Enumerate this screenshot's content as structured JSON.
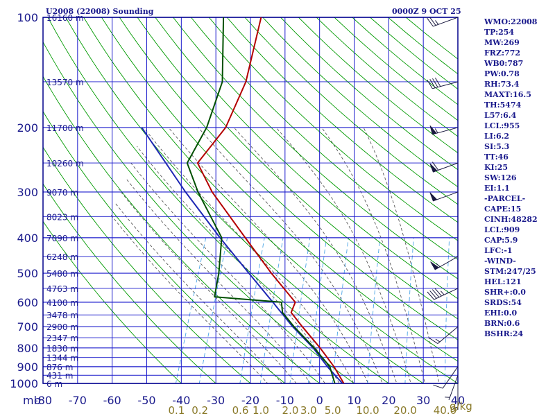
{
  "title_left": "U2008 (22008) Sounding",
  "title_right": "0000Z  9 OCT 25",
  "chart_data": {
    "type": "skew-t",
    "pressure_levels": [
      100,
      200,
      300,
      400,
      500,
      600,
      700,
      800,
      900,
      1000
    ],
    "pressure_axis_label": "mb",
    "temperature_ticks": [
      -80,
      -70,
      -60,
      -50,
      -40,
      -30,
      -20,
      -10,
      0,
      10,
      20,
      30,
      40
    ],
    "mixing_ratio_labels": [
      "0.1",
      "0.2",
      "0.6",
      "1.0",
      "2.0",
      "3.0",
      "5.0",
      "10.0",
      "20.0",
      "40.0"
    ],
    "mixing_ratio_unit": "g/kg",
    "mixing_ratio_values": [
      0.1,
      0.2,
      0.6,
      1.0,
      2.0,
      3.0,
      5.0,
      10.0,
      20.0,
      40.0
    ],
    "height_labels": [
      {
        "p": 100,
        "label": "16160 m"
      },
      {
        "p": 150,
        "label": "13570 m"
      },
      {
        "p": 200,
        "label": "11700 m"
      },
      {
        "p": 250,
        "label": "10260 m"
      },
      {
        "p": 300,
        "label": "9070 m"
      },
      {
        "p": 350,
        "label": "8023 m"
      },
      {
        "p": 400,
        "label": "7090 m"
      },
      {
        "p": 450,
        "label": "6248 m"
      },
      {
        "p": 500,
        "label": "5480 m"
      },
      {
        "p": 550,
        "label": "4763 m"
      },
      {
        "p": 600,
        "label": "4100 m"
      },
      {
        "p": 650,
        "label": "3478 m"
      },
      {
        "p": 700,
        "label": "2900 m"
      },
      {
        "p": 750,
        "label": "2347 m"
      },
      {
        "p": 800,
        "label": "1830 m"
      },
      {
        "p": 850,
        "label": "1344 m"
      },
      {
        "p": 900,
        "label": "876 m"
      },
      {
        "p": 950,
        "label": "431 m"
      },
      {
        "p": 1000,
        "label": "6 m"
      }
    ],
    "temperature_profile": [
      {
        "p": 1000,
        "t": 7.0
      },
      {
        "p": 900,
        "t": 2.2
      },
      {
        "p": 800,
        "t": -4.0
      },
      {
        "p": 700,
        "t": -11.6
      },
      {
        "p": 640,
        "t": -16.5
      },
      {
        "p": 600,
        "t": -16.5
      },
      {
        "p": 500,
        "t": -26.8
      },
      {
        "p": 400,
        "t": -38.5
      },
      {
        "p": 300,
        "t": -53.4
      },
      {
        "p": 250,
        "t": -61.0
      },
      {
        "p": 200,
        "t": -57.0
      },
      {
        "p": 150,
        "t": -56.5
      },
      {
        "p": 100,
        "t": -59.6
      }
    ],
    "dewpoint_profile": [
      {
        "p": 1000,
        "t": 4.4
      },
      {
        "p": 900,
        "t": 1.0
      },
      {
        "p": 800,
        "t": -5.7
      },
      {
        "p": 700,
        "t": -14.0
      },
      {
        "p": 640,
        "t": -19.0
      },
      {
        "p": 600,
        "t": -20.5
      },
      {
        "p": 580,
        "t": -40.5
      },
      {
        "p": 500,
        "t": -42.0
      },
      {
        "p": 400,
        "t": -45.3
      },
      {
        "p": 300,
        "t": -57.5
      },
      {
        "p": 250,
        "t": -64.0
      },
      {
        "p": 200,
        "t": -62.5
      },
      {
        "p": 150,
        "t": -63.3
      },
      {
        "p": 100,
        "t": -70.5
      }
    ],
    "parcel_path": [
      {
        "p": 1000,
        "t": 6.6
      },
      {
        "p": 900,
        "t": 0.3
      },
      {
        "p": 800,
        "t": -6.0
      },
      {
        "p": 700,
        "t": -14.4
      },
      {
        "p": 600,
        "t": -23.0
      },
      {
        "p": 500,
        "t": -33.3
      },
      {
        "p": 400,
        "t": -45.8
      },
      {
        "p": 300,
        "t": -61.1
      },
      {
        "p": 200,
        "t": -81.3
      }
    ],
    "wind_barbs": [
      {
        "p": 100,
        "dir": 250,
        "spd": 25
      },
      {
        "p": 150,
        "dir": 255,
        "spd": 40
      },
      {
        "p": 200,
        "dir": 255,
        "spd": 55
      },
      {
        "p": 250,
        "dir": 250,
        "spd": 60
      },
      {
        "p": 300,
        "dir": 250,
        "spd": 50
      },
      {
        "p": 450,
        "dir": 240,
        "spd": 55
      },
      {
        "p": 550,
        "dir": 245,
        "spd": 45
      },
      {
        "p": 700,
        "dir": 230,
        "spd": 15
      },
      {
        "p": 900,
        "dir": 215,
        "spd": 10
      },
      {
        "p": 950,
        "dir": 200,
        "spd": 5
      },
      {
        "p": 1000,
        "dir": 180,
        "spd": 5
      }
    ]
  },
  "indices": [
    "WMO:22008",
    "TP:254",
    "MW:269",
    "FRZ:772",
    "WB0:787",
    "PW:0.78",
    "RH:73.4",
    "MAXT:16.5",
    "TH:5474",
    "L57:6.4",
    "LCL:955",
    "LI:6.2",
    "SI:5.3",
    "TT:46",
    "KI:25",
    "SW:126",
    "EI:1.1",
    "-PARCEL-",
    "CAPE:15",
    "CINH:48282",
    "LCL:909",
    "CAP:5.9",
    "LFC:-1",
    "-WIND-",
    "STM:247/25",
    "HEL:121",
    "SHR+:0.0",
    "SRDS:54",
    "EHI:0.0",
    "BRN:0.6",
    "BSHR:24"
  ],
  "colors": {
    "frame": "#00008b",
    "isotherm": "#1a1acc",
    "dry_adiabat": "#009a00",
    "moist_adiabat": "#3c3c3c",
    "mixing_ratio": "#1e8fe0",
    "temperature": "#b40000",
    "dewpoint": "#005000",
    "parcel": "#1e28b4",
    "barb": "#1a1a40"
  }
}
